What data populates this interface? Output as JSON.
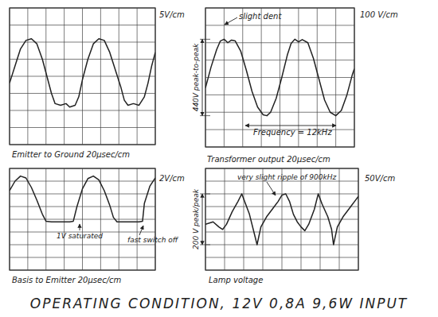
{
  "title": "OPERATING CONDITION, 12V 0,8A 9,6W INPUT",
  "chart_data": [
    {
      "type": "line",
      "title": "Emitter to Ground 20µsec/cm",
      "ylabel": "5V/cm",
      "x": [
        0,
        6,
        12,
        18,
        24,
        30,
        36,
        42,
        46,
        50,
        56,
        62,
        66,
        72,
        76,
        80,
        86,
        92,
        98,
        104,
        110,
        116,
        122,
        126,
        130,
        136,
        142,
        148,
        152,
        156,
        160
      ],
      "series": [
        {
          "color": "#222222",
          "values": [
            -2,
            3,
            8,
            10.5,
            11,
            9.5,
            5,
            -1,
            -5,
            -8,
            -8.5,
            -8,
            -9,
            -8.5,
            -6,
            -1,
            5,
            9.5,
            11,
            10.5,
            7,
            2,
            -3,
            -7,
            -8.5,
            -8,
            -8.5,
            -6,
            -2,
            3,
            7
          ]
        }
      ],
      "xlim": [
        0,
        160
      ],
      "ylim": [
        -20,
        20
      ],
      "xticks": [
        0,
        20,
        40,
        60,
        80,
        100,
        120,
        140,
        160
      ],
      "yticks": [
        -20,
        -15,
        -10,
        -5,
        0,
        5,
        10,
        15,
        20
      ],
      "grid": true,
      "tick_labels": false
    },
    {
      "type": "line",
      "title": "Transformer output 20µsec/cm",
      "ylabel": "100 V/cm",
      "annotations": [
        "slight dent",
        "440V peak-to-peak",
        "Frequency = 12kHz"
      ],
      "x": [
        0,
        6,
        12,
        16,
        20,
        24,
        28,
        32,
        38,
        44,
        50,
        56,
        62,
        66,
        70,
        76,
        82,
        88,
        92,
        96,
        100,
        104,
        110,
        116,
        122,
        128,
        134,
        140,
        146,
        152,
        158,
        160
      ],
      "series": [
        {
          "color": "#222222",
          "values": [
            -60,
            60,
            160,
            210,
            220,
            200,
            215,
            210,
            150,
            40,
            -80,
            -170,
            -215,
            -220,
            -200,
            -120,
            0,
            130,
            195,
            220,
            205,
            218,
            200,
            110,
            -10,
            -130,
            -200,
            -220,
            -190,
            -100,
            20,
            50
          ]
        }
      ],
      "xlim": [
        0,
        160
      ],
      "ylim": [
        -400,
        400
      ],
      "xticks": [
        0,
        20,
        40,
        60,
        80,
        100,
        120,
        140,
        160
      ],
      "yticks": [
        -400,
        -300,
        -200,
        -100,
        0,
        100,
        200,
        300,
        400
      ],
      "grid": true,
      "tick_labels": false
    },
    {
      "type": "line",
      "title": "Basis to Emitter 20µsec/cm",
      "ylabel": "2V/cm",
      "annotations": [
        "1V saturated",
        "fast switch off"
      ],
      "x": [
        0,
        6,
        12,
        18,
        24,
        30,
        36,
        40,
        46,
        56,
        66,
        70,
        74,
        80,
        86,
        92,
        98,
        104,
        110,
        114,
        118,
        130,
        142,
        146,
        148,
        154,
        160
      ],
      "series": [
        {
          "color": "#222222",
          "values": [
            4.5,
            6,
            6.8,
            6.5,
            5,
            3,
            0.8,
            -0.3,
            -0.4,
            -0.4,
            -0.4,
            -0.3,
            2,
            4.8,
            6.4,
            6.8,
            6.2,
            4.5,
            2.2,
            0.3,
            -0.4,
            -0.4,
            -0.4,
            -0.3,
            2.5,
            5.2,
            6.5
          ]
        }
      ],
      "xlim": [
        0,
        160
      ],
      "ylim": [
        -8,
        8
      ],
      "xticks": [
        0,
        20,
        40,
        60,
        80,
        100,
        120,
        140,
        160
      ],
      "yticks": [
        -8,
        -6,
        -4,
        -2,
        0,
        2,
        4,
        6,
        8
      ],
      "grid": true,
      "tick_labels": false
    },
    {
      "type": "line",
      "title": "Lamp voltage",
      "ylabel": "50V/cm",
      "annotations": [
        "very slight ripple of 900kHz",
        "200 V peak/peak"
      ],
      "x": [
        0,
        8,
        14,
        18,
        22,
        28,
        34,
        38,
        42,
        46,
        50,
        54,
        58,
        64,
        70,
        76,
        80,
        84,
        88,
        92,
        96,
        100,
        104,
        108,
        114,
        118,
        122,
        128,
        132,
        134,
        138,
        144,
        150,
        156,
        160
      ],
      "series": [
        {
          "color": "#222222",
          "values": [
            -20,
            -10,
            -30,
            -40,
            -20,
            30,
            70,
            100,
            60,
            20,
            -40,
            -100,
            -30,
            10,
            40,
            70,
            95,
            100,
            70,
            20,
            -10,
            -30,
            -45,
            -20,
            40,
            100,
            60,
            10,
            -40,
            -100,
            -30,
            10,
            40,
            70,
            90
          ]
        }
      ],
      "xlim": [
        0,
        160
      ],
      "ylim": [
        -200,
        200
      ],
      "xticks": [
        0,
        20,
        40,
        60,
        80,
        100,
        120,
        140,
        160
      ],
      "yticks": [
        -200,
        -150,
        -100,
        -50,
        0,
        50,
        100,
        150,
        200
      ],
      "grid": true,
      "tick_labels": false
    }
  ]
}
